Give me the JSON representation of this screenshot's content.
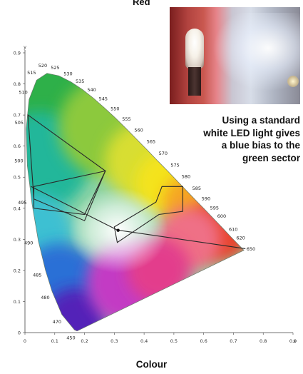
{
  "header": {
    "fragment": "Red"
  },
  "photo": {
    "subject": "LED lamp illuminating a red wall and white surface"
  },
  "caption": {
    "lines": [
      "Using a standard",
      "white LED light gives",
      "a blue bias to the",
      "green sector"
    ]
  },
  "x_title": "Colour",
  "chart_data": {
    "type": "diagram",
    "x_ticks": [
      "0",
      "0.1",
      "0.2",
      "0.3",
      "0.4",
      "0.5",
      "0.6",
      "0.7",
      "0.8",
      "0.9"
    ],
    "y_ticks": [
      "0",
      "0.1",
      "0.2",
      "0.3",
      "0.4",
      "0.5",
      "0.6",
      "0.7",
      "0.8",
      "0.9"
    ],
    "x_axis_letter": "x",
    "y_axis_letter": "y",
    "xlim": [
      0,
      0.9
    ],
    "ylim": [
      0,
      0.9
    ],
    "wavelengths": [
      {
        "label": "450",
        "x": 0.166,
        "y": 0.009
      },
      {
        "label": "470",
        "x": 0.124,
        "y": 0.058
      },
      {
        "label": "480",
        "x": 0.091,
        "y": 0.133
      },
      {
        "label": "485",
        "x": 0.069,
        "y": 0.201
      },
      {
        "label": "490",
        "x": 0.045,
        "y": 0.295
      },
      {
        "label": "495",
        "x": 0.024,
        "y": 0.413
      },
      {
        "label": "500",
        "x": 0.008,
        "y": 0.538
      },
      {
        "label": "505",
        "x": 0.004,
        "y": 0.655
      },
      {
        "label": "510",
        "x": 0.014,
        "y": 0.75
      },
      {
        "label": "515",
        "x": 0.039,
        "y": 0.812
      },
      {
        "label": "520",
        "x": 0.074,
        "y": 0.834
      },
      {
        "label": "525",
        "x": 0.114,
        "y": 0.826
      },
      {
        "label": "530",
        "x": 0.155,
        "y": 0.806
      },
      {
        "label": "535",
        "x": 0.193,
        "y": 0.782
      },
      {
        "label": "540",
        "x": 0.23,
        "y": 0.754
      },
      {
        "label": "545",
        "x": 0.266,
        "y": 0.724
      },
      {
        "label": "550",
        "x": 0.302,
        "y": 0.692
      },
      {
        "label": "555",
        "x": 0.337,
        "y": 0.659
      },
      {
        "label": "560",
        "x": 0.373,
        "y": 0.624
      },
      {
        "label": "565",
        "x": 0.409,
        "y": 0.589
      },
      {
        "label": "570",
        "x": 0.444,
        "y": 0.554
      },
      {
        "label": "575",
        "x": 0.479,
        "y": 0.52
      },
      {
        "label": "580",
        "x": 0.512,
        "y": 0.487
      },
      {
        "label": "585",
        "x": 0.545,
        "y": 0.454
      },
      {
        "label": "590",
        "x": 0.575,
        "y": 0.424
      },
      {
        "label": "595",
        "x": 0.603,
        "y": 0.397
      },
      {
        "label": "600",
        "x": 0.627,
        "y": 0.373
      },
      {
        "label": "610",
        "x": 0.666,
        "y": 0.334
      },
      {
        "label": "620",
        "x": 0.691,
        "y": 0.308
      },
      {
        "label": "650",
        "x": 0.726,
        "y": 0.274
      }
    ],
    "locus_tail": [
      {
        "x": 0.175,
        "y": 0.005
      },
      {
        "x": 0.735,
        "y": 0.265
      }
    ],
    "white_point": {
      "x": 0.3127,
      "y": 0.329
    },
    "overlays": [
      {
        "name": "green-region-outer",
        "points": [
          [
            0.01,
            0.7
          ],
          [
            0.27,
            0.52
          ],
          [
            0.2,
            0.36
          ],
          [
            0.03,
            0.43
          ]
        ]
      },
      {
        "name": "green-region-inner",
        "points": [
          [
            0.03,
            0.47
          ],
          [
            0.27,
            0.52
          ],
          [
            0.26,
            0.5
          ],
          [
            0.2,
            0.38
          ],
          [
            0.03,
            0.4
          ]
        ]
      },
      {
        "name": "line-red-to-white",
        "points": [
          [
            0.31,
            0.33
          ],
          [
            0.74,
            0.27
          ]
        ]
      },
      {
        "name": "line-green-to-white",
        "points": [
          [
            0.02,
            0.47
          ],
          [
            0.31,
            0.33
          ]
        ]
      },
      {
        "name": "amber-region",
        "points": [
          [
            0.3,
            0.34
          ],
          [
            0.44,
            0.42
          ],
          [
            0.46,
            0.47
          ],
          [
            0.53,
            0.47
          ],
          [
            0.53,
            0.39
          ],
          [
            0.45,
            0.38
          ],
          [
            0.31,
            0.29
          ]
        ]
      }
    ]
  }
}
